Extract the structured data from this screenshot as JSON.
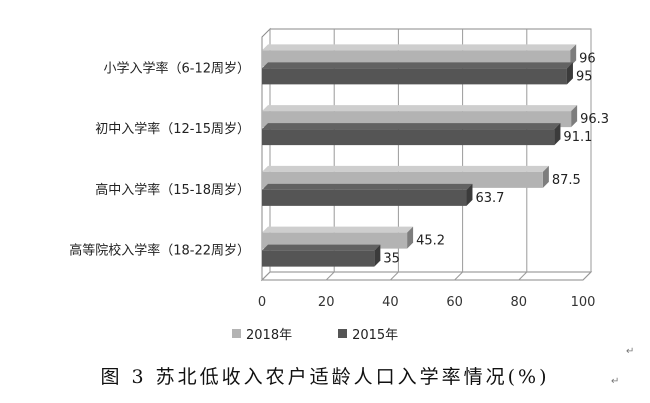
{
  "chart_data": {
    "type": "bar",
    "orientation": "horizontal",
    "categories": [
      "小学入学率（6-12周岁）",
      "初中入学率（12-15周岁）",
      "高中入学率（15-18周岁）",
      "高等院校入学率（18-22周岁）"
    ],
    "series": [
      {
        "name": "2018年",
        "values": [
          96,
          96.3,
          87.5,
          45.2
        ],
        "color": "#b3b3b3"
      },
      {
        "name": "2015年",
        "values": [
          95,
          91.1,
          63.7,
          35
        ],
        "color": "#555555"
      }
    ],
    "data_labels": [
      [
        "96",
        "96.3",
        "87.5",
        "45.2"
      ],
      [
        "95",
        "91.1",
        "63.7",
        "35"
      ]
    ],
    "x_ticks": [
      "0",
      "20",
      "40",
      "60",
      "80",
      "100"
    ],
    "xlim": [
      0,
      100
    ],
    "legend_position": "bottom",
    "grid": true,
    "style": "3d"
  },
  "caption": "图 3   苏北低收入农户适龄人口入学率情况(%)",
  "marks": [
    "↵",
    "↵"
  ]
}
